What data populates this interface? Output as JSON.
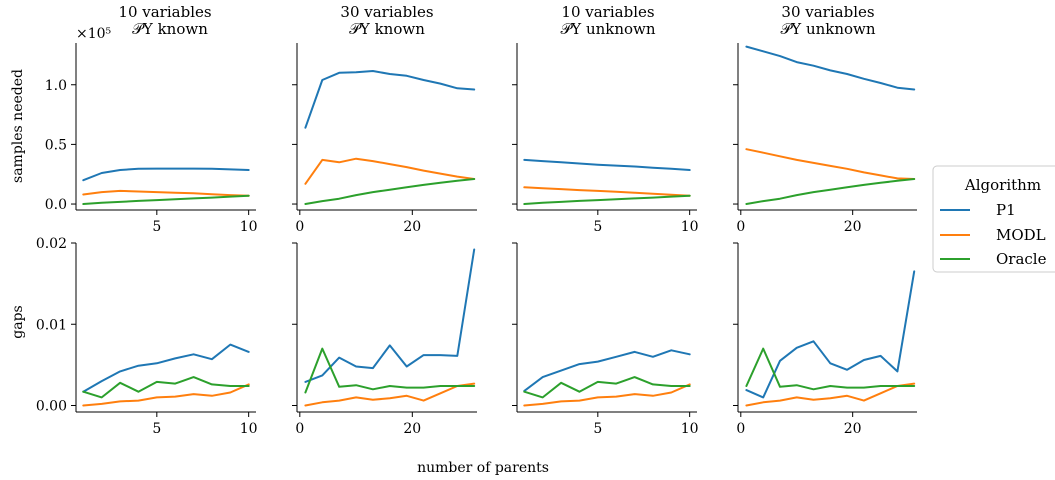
{
  "x_label": "number of parents",
  "y_label_top": "samples needed",
  "y_label_bottom": "gaps",
  "top_row_scale": "×10⁵",
  "legend": {
    "title": "Algorithm",
    "entries": [
      {
        "name": "P1",
        "color": "#1f77b4"
      },
      {
        "name": "MODL",
        "color": "#ff7f0e"
      },
      {
        "name": "Oracle",
        "color": "#2ca02c"
      }
    ]
  },
  "columns": [
    {
      "title_line1": "10 variables",
      "title_line2": "𝒫Y known"
    },
    {
      "title_line1": "30 variables",
      "title_line2": "𝒫Y known"
    },
    {
      "title_line1": "10 variables",
      "title_line2": "𝒫Y unknown"
    },
    {
      "title_line1": "30 variables",
      "title_line2": "𝒫Y unknown"
    }
  ],
  "y_ticks_top": [
    "0.0",
    "0.5",
    "1.0"
  ],
  "y_ticks_bottom": [
    "0.00",
    "0.01",
    "0.02"
  ],
  "chart_data": [
    {
      "type": "line",
      "row": "samples needed",
      "col": 0,
      "xlim": [
        0.6,
        10.4
      ],
      "ylim": [
        -0.05,
        1.35
      ],
      "xticks": [
        5,
        10
      ],
      "series": [
        {
          "name": "P1",
          "x": [
            1,
            2,
            3,
            4,
            5,
            6,
            7,
            8,
            9,
            10
          ],
          "y": [
            0.2,
            0.26,
            0.285,
            0.295,
            0.297,
            0.297,
            0.297,
            0.295,
            0.29,
            0.285
          ]
        },
        {
          "name": "MODL",
          "x": [
            1,
            2,
            3,
            4,
            5,
            6,
            7,
            8,
            9,
            10
          ],
          "y": [
            0.08,
            0.1,
            0.11,
            0.105,
            0.1,
            0.095,
            0.09,
            0.082,
            0.075,
            0.07
          ]
        },
        {
          "name": "Oracle",
          "x": [
            1,
            2,
            3,
            4,
            5,
            6,
            7,
            8,
            9,
            10
          ],
          "y": [
            0.0,
            0.01,
            0.018,
            0.026,
            0.033,
            0.04,
            0.047,
            0.054,
            0.062,
            0.07
          ]
        }
      ]
    },
    {
      "type": "line",
      "row": "samples needed",
      "col": 1,
      "xlim": [
        -0.5,
        31.5
      ],
      "ylim": [
        -0.05,
        1.35
      ],
      "xticks": [
        0,
        20
      ],
      "series": [
        {
          "name": "P1",
          "x": [
            1,
            4,
            7,
            10,
            13,
            16,
            19,
            22,
            25,
            28,
            31
          ],
          "y": [
            0.64,
            1.04,
            1.1,
            1.105,
            1.115,
            1.09,
            1.075,
            1.04,
            1.01,
            0.97,
            0.96
          ]
        },
        {
          "name": "MODL",
          "x": [
            1,
            4,
            7,
            10,
            13,
            16,
            19,
            22,
            25,
            28,
            31
          ],
          "y": [
            0.17,
            0.37,
            0.35,
            0.38,
            0.36,
            0.335,
            0.31,
            0.28,
            0.255,
            0.23,
            0.21
          ]
        },
        {
          "name": "Oracle",
          "x": [
            1,
            4,
            7,
            10,
            13,
            16,
            19,
            22,
            25,
            28,
            31
          ],
          "y": [
            0.0,
            0.025,
            0.045,
            0.075,
            0.1,
            0.12,
            0.14,
            0.16,
            0.178,
            0.195,
            0.21
          ]
        }
      ]
    },
    {
      "type": "line",
      "row": "samples needed",
      "col": 2,
      "xlim": [
        0.6,
        10.4
      ],
      "ylim": [
        -0.05,
        1.35
      ],
      "xticks": [
        5,
        10
      ],
      "series": [
        {
          "name": "P1",
          "x": [
            1,
            2,
            3,
            4,
            5,
            6,
            7,
            8,
            9,
            10
          ],
          "y": [
            0.37,
            0.36,
            0.35,
            0.34,
            0.33,
            0.322,
            0.315,
            0.305,
            0.295,
            0.285
          ]
        },
        {
          "name": "MODL",
          "x": [
            1,
            2,
            3,
            4,
            5,
            6,
            7,
            8,
            9,
            10
          ],
          "y": [
            0.14,
            0.132,
            0.125,
            0.117,
            0.11,
            0.103,
            0.095,
            0.087,
            0.078,
            0.07
          ]
        },
        {
          "name": "Oracle",
          "x": [
            1,
            2,
            3,
            4,
            5,
            6,
            7,
            8,
            9,
            10
          ],
          "y": [
            0.0,
            0.01,
            0.018,
            0.026,
            0.033,
            0.04,
            0.047,
            0.054,
            0.062,
            0.07
          ]
        }
      ]
    },
    {
      "type": "line",
      "row": "samples needed",
      "col": 3,
      "xlim": [
        -0.5,
        31.5
      ],
      "ylim": [
        -0.05,
        1.35
      ],
      "xticks": [
        0,
        20
      ],
      "series": [
        {
          "name": "P1",
          "x": [
            1,
            4,
            7,
            10,
            13,
            16,
            19,
            22,
            25,
            28,
            31
          ],
          "y": [
            1.32,
            1.28,
            1.24,
            1.19,
            1.16,
            1.12,
            1.09,
            1.05,
            1.015,
            0.975,
            0.96
          ]
        },
        {
          "name": "MODL",
          "x": [
            1,
            4,
            7,
            10,
            13,
            16,
            19,
            22,
            25,
            28,
            31
          ],
          "y": [
            0.46,
            0.43,
            0.4,
            0.37,
            0.345,
            0.32,
            0.295,
            0.265,
            0.24,
            0.215,
            0.21
          ]
        },
        {
          "name": "Oracle",
          "x": [
            1,
            4,
            7,
            10,
            13,
            16,
            19,
            22,
            25,
            28,
            31
          ],
          "y": [
            0.0,
            0.025,
            0.045,
            0.075,
            0.1,
            0.12,
            0.14,
            0.16,
            0.178,
            0.195,
            0.21
          ]
        }
      ]
    },
    {
      "type": "line",
      "row": "gaps",
      "col": 0,
      "xlim": [
        0.6,
        10.4
      ],
      "ylim": [
        -0.0008,
        0.02
      ],
      "xticks": [
        5,
        10
      ],
      "series": [
        {
          "name": "P1",
          "x": [
            1,
            2,
            3,
            4,
            5,
            6,
            7,
            8,
            9,
            10
          ],
          "y": [
            0.0017,
            0.003,
            0.0042,
            0.0049,
            0.0052,
            0.0058,
            0.0063,
            0.0057,
            0.0075,
            0.0066
          ]
        },
        {
          "name": "MODL",
          "x": [
            1,
            2,
            3,
            4,
            5,
            6,
            7,
            8,
            9,
            10
          ],
          "y": [
            0.0,
            0.0002,
            0.0005,
            0.0006,
            0.001,
            0.0011,
            0.0014,
            0.0012,
            0.0016,
            0.0026
          ]
        },
        {
          "name": "Oracle",
          "x": [
            1,
            2,
            3,
            4,
            5,
            6,
            7,
            8,
            9,
            10
          ],
          "y": [
            0.0017,
            0.001,
            0.0028,
            0.0017,
            0.0029,
            0.0027,
            0.0035,
            0.0026,
            0.0024,
            0.0024
          ]
        }
      ]
    },
    {
      "type": "line",
      "row": "gaps",
      "col": 1,
      "xlim": [
        -0.5,
        31.5
      ],
      "ylim": [
        -0.0008,
        0.02
      ],
      "xticks": [
        0,
        20
      ],
      "series": [
        {
          "name": "P1",
          "x": [
            1,
            4,
            7,
            10,
            13,
            16,
            19,
            22,
            25,
            28,
            31
          ],
          "y": [
            0.0029,
            0.0037,
            0.0059,
            0.0048,
            0.0046,
            0.0074,
            0.0048,
            0.0062,
            0.0062,
            0.0061,
            0.0192
          ]
        },
        {
          "name": "MODL",
          "x": [
            1,
            4,
            7,
            10,
            13,
            16,
            19,
            22,
            25,
            28,
            31
          ],
          "y": [
            0.0,
            0.0004,
            0.0006,
            0.001,
            0.0007,
            0.0009,
            0.0012,
            0.0006,
            0.0015,
            0.0024,
            0.0027
          ]
        },
        {
          "name": "Oracle",
          "x": [
            1,
            4,
            7,
            10,
            13,
            16,
            19,
            22,
            25,
            28,
            31
          ],
          "y": [
            0.0016,
            0.007,
            0.0023,
            0.0025,
            0.002,
            0.0024,
            0.0022,
            0.0022,
            0.0024,
            0.0024,
            0.0024
          ]
        }
      ]
    },
    {
      "type": "line",
      "row": "gaps",
      "col": 2,
      "xlim": [
        0.6,
        10.4
      ],
      "ylim": [
        -0.0008,
        0.02
      ],
      "xticks": [
        5,
        10
      ],
      "series": [
        {
          "name": "P1",
          "x": [
            1,
            2,
            3,
            4,
            5,
            6,
            7,
            8,
            9,
            10
          ],
          "y": [
            0.0018,
            0.0035,
            0.0043,
            0.0051,
            0.0054,
            0.006,
            0.0066,
            0.006,
            0.0068,
            0.0063
          ]
        },
        {
          "name": "MODL",
          "x": [
            1,
            2,
            3,
            4,
            5,
            6,
            7,
            8,
            9,
            10
          ],
          "y": [
            0.0,
            0.0002,
            0.0005,
            0.0006,
            0.001,
            0.0011,
            0.0014,
            0.0012,
            0.0016,
            0.0026
          ]
        },
        {
          "name": "Oracle",
          "x": [
            1,
            2,
            3,
            4,
            5,
            6,
            7,
            8,
            9,
            10
          ],
          "y": [
            0.0017,
            0.001,
            0.0028,
            0.0017,
            0.0029,
            0.0027,
            0.0035,
            0.0026,
            0.0024,
            0.0024
          ]
        }
      ]
    },
    {
      "type": "line",
      "row": "gaps",
      "col": 3,
      "xlim": [
        -0.5,
        31.5
      ],
      "ylim": [
        -0.0008,
        0.02
      ],
      "xticks": [
        0,
        20
      ],
      "series": [
        {
          "name": "P1",
          "x": [
            1,
            4,
            7,
            10,
            13,
            16,
            19,
            22,
            25,
            28,
            31
          ],
          "y": [
            0.0019,
            0.001,
            0.0055,
            0.0071,
            0.0079,
            0.0052,
            0.0044,
            0.0056,
            0.0061,
            0.0042,
            0.0165
          ]
        },
        {
          "name": "MODL",
          "x": [
            1,
            4,
            7,
            10,
            13,
            16,
            19,
            22,
            25,
            28,
            31
          ],
          "y": [
            0.0,
            0.0004,
            0.0006,
            0.001,
            0.0007,
            0.0009,
            0.0012,
            0.0006,
            0.0015,
            0.0024,
            0.0027
          ]
        },
        {
          "name": "Oracle",
          "x": [
            1,
            4,
            7,
            10,
            13,
            16,
            19,
            22,
            25,
            28,
            31
          ],
          "y": [
            0.0024,
            0.007,
            0.0023,
            0.0025,
            0.002,
            0.0024,
            0.0022,
            0.0022,
            0.0024,
            0.0024,
            0.0024
          ]
        }
      ]
    }
  ]
}
